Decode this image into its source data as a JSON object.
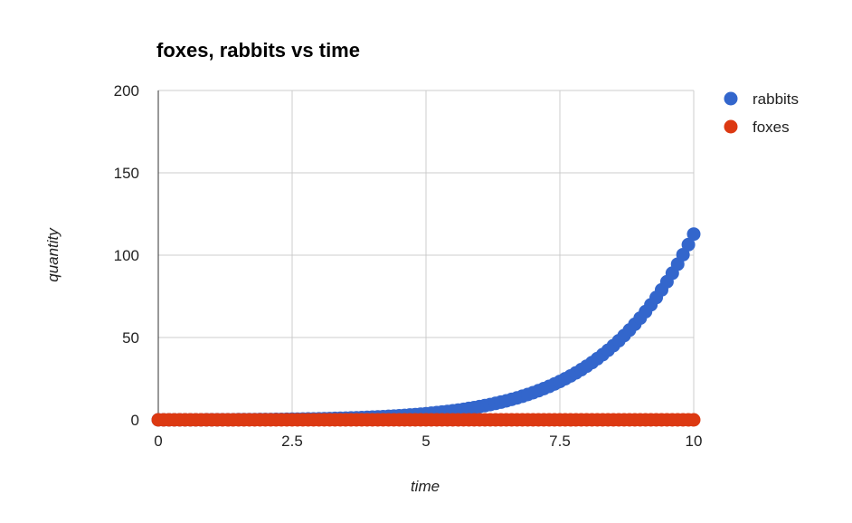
{
  "chart_data": {
    "type": "scatter",
    "title": "foxes, rabbits vs time",
    "xlabel": "time",
    "ylabel": "quantity",
    "xlim": [
      0,
      10
    ],
    "ylim": [
      0,
      200
    ],
    "xticks": [
      "0",
      "2.5",
      "5",
      "7.5",
      "10"
    ],
    "yticks": [
      "0",
      "50",
      "100",
      "150",
      "200"
    ],
    "grid": true,
    "legend_position": "right",
    "x": [
      0,
      0.1,
      0.2,
      0.3,
      0.4,
      0.5,
      0.6,
      0.7,
      0.8,
      0.9,
      1.0,
      1.1,
      1.2,
      1.3,
      1.4,
      1.5,
      1.6,
      1.7,
      1.8,
      1.9,
      2.0,
      2.1,
      2.2,
      2.3,
      2.4,
      2.5,
      2.6,
      2.7,
      2.8,
      2.9,
      3.0,
      3.1,
      3.2,
      3.3,
      3.4,
      3.5,
      3.6,
      3.7,
      3.8,
      3.9,
      4.0,
      4.1,
      4.2,
      4.3,
      4.4,
      4.5,
      4.6,
      4.7,
      4.8,
      4.9,
      5.0,
      5.1,
      5.2,
      5.3,
      5.4,
      5.5,
      5.6,
      5.7,
      5.8,
      5.9,
      6.0,
      6.1,
      6.2,
      6.3,
      6.4,
      6.5,
      6.6,
      6.7,
      6.8,
      6.9,
      7.0,
      7.1,
      7.2,
      7.3,
      7.4,
      7.5,
      7.6,
      7.7,
      7.8,
      7.9,
      8.0,
      8.1,
      8.2,
      8.3,
      8.4,
      8.5,
      8.6,
      8.7,
      8.8,
      8.9,
      9.0,
      9.1,
      9.2,
      9.3,
      9.4,
      9.5,
      9.6,
      9.7,
      9.8,
      9.9,
      10.0
    ],
    "series": [
      {
        "name": "rabbits",
        "color": "#3366cc",
        "values": [
          0.01,
          0.01,
          0.01,
          0.01,
          0.02,
          0.02,
          0.02,
          0.03,
          0.03,
          0.04,
          0.05,
          0.06,
          0.07,
          0.08,
          0.09,
          0.11,
          0.12,
          0.14,
          0.16,
          0.19,
          0.21,
          0.24,
          0.27,
          0.3,
          0.34,
          0.38,
          0.42,
          0.47,
          0.52,
          0.58,
          0.64,
          0.71,
          0.78,
          0.86,
          0.95,
          1.04,
          1.14,
          1.25,
          1.37,
          1.49,
          1.63,
          1.78,
          1.94,
          2.11,
          2.29,
          2.49,
          2.71,
          2.94,
          3.18,
          3.45,
          3.73,
          4.04,
          4.37,
          4.72,
          5.1,
          5.5,
          5.94,
          6.41,
          6.91,
          7.45,
          8.02,
          8.64,
          9.3,
          10.01,
          10.76,
          11.57,
          12.43,
          13.35,
          14.34,
          15.39,
          16.5,
          17.7,
          18.97,
          20.32,
          21.77,
          23.3,
          24.94,
          26.67,
          28.52,
          30.48,
          32.57,
          34.78,
          37.13,
          39.62,
          42.27,
          45.07,
          48.04,
          51.18,
          54.51,
          58.04,
          61.77,
          65.71,
          69.88,
          74.29,
          78.94,
          83.86,
          89.05,
          94.52,
          100.3,
          106.39,
          112.8
        ]
      },
      {
        "name": "foxes",
        "color": "#dc3912",
        "values": [
          0.0,
          0.0,
          0.0,
          0.0,
          0.0,
          0.0,
          0.0,
          0.0,
          0.0,
          0.0,
          0.0,
          0.0,
          0.0,
          0.0,
          0.0,
          0.0,
          0.0,
          0.0,
          0.0,
          0.0,
          0.0,
          0.0,
          0.0,
          0.0,
          0.0,
          0.0,
          0.0,
          0.0,
          0.0,
          0.0,
          0.0,
          0.0,
          0.0,
          0.0,
          0.0,
          0.0,
          0.0,
          0.0,
          0.0,
          0.0,
          0.0,
          0.0,
          0.0,
          0.0,
          0.0,
          0.0,
          0.0,
          0.0,
          0.0,
          0.0,
          0.0,
          0.0,
          0.0,
          0.0,
          0.0,
          0.0,
          0.0,
          0.0,
          0.0,
          0.0,
          0.0,
          0.0,
          0.0,
          0.0,
          0.0,
          0.0,
          0.0,
          0.0,
          0.0,
          0.0,
          0.0,
          0.0,
          0.0,
          0.0,
          0.0,
          0.0,
          0.0,
          0.0,
          0.0,
          0.0,
          0.0,
          0.0,
          0.0,
          0.0,
          0.0,
          0.0,
          0.0,
          0.0,
          0.0,
          0.0,
          0.0,
          0.0,
          0.0,
          0.0,
          0.0,
          0.0,
          0.0,
          0.0,
          0.0,
          0.0,
          0.0
        ]
      }
    ]
  }
}
